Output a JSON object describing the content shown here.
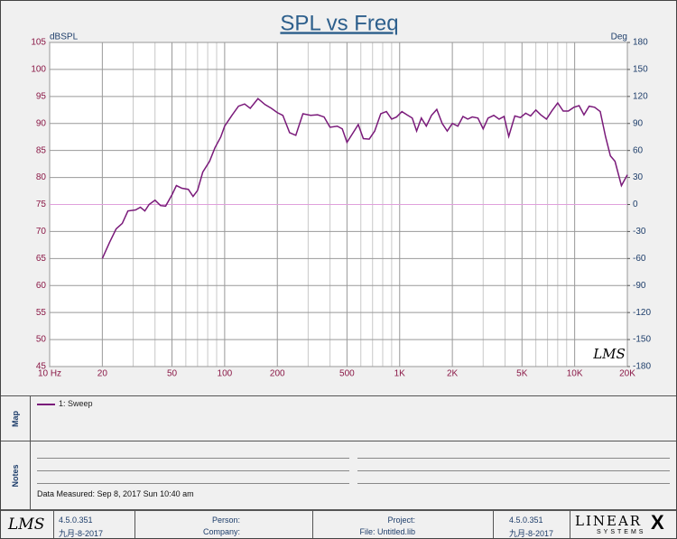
{
  "chart_data": {
    "type": "line",
    "title": "SPL vs Freq",
    "ylabel": "dBSPL",
    "y2label": "Deg",
    "xscale": "log",
    "xlim": [
      10,
      20000
    ],
    "xticks": [
      {
        "value": 10,
        "label": "10 Hz"
      },
      20,
      50,
      100,
      200,
      500,
      {
        "value": 1000,
        "label": "1K"
      },
      {
        "value": 2000,
        "label": "2K"
      },
      {
        "value": 5000,
        "label": "5K"
      },
      {
        "value": 10000,
        "label": "10K"
      },
      {
        "value": 20000,
        "label": "20K"
      }
    ],
    "xminor_ticks": [
      30,
      40,
      60,
      70,
      80,
      90,
      300,
      400,
      600,
      700,
      800,
      900,
      3000,
      4000,
      6000,
      7000,
      8000,
      9000
    ],
    "ylim": [
      45,
      105
    ],
    "yticks": [
      45,
      50,
      55,
      60,
      65,
      70,
      75,
      80,
      85,
      90,
      95,
      100,
      105
    ],
    "y2lim": [
      -180,
      180
    ],
    "y2ticks": [
      -180,
      -150,
      -120,
      -90,
      -60,
      -30,
      0,
      30,
      60,
      90,
      120,
      150,
      180
    ],
    "grid": true,
    "series": [
      {
        "name": "1: Sweep",
        "color": "#7a1a7a",
        "x": [
          20,
          22,
          24,
          26,
          28,
          31,
          33,
          35,
          37,
          40,
          43,
          46,
          50,
          53,
          57,
          62,
          66,
          70,
          75,
          82,
          88,
          95,
          100,
          110,
          120,
          130,
          140,
          155,
          170,
          185,
          200,
          215,
          235,
          255,
          280,
          310,
          340,
          370,
          400,
          440,
          470,
          500,
          540,
          580,
          620,
          670,
          720,
          780,
          840,
          900,
          960,
          1030,
          1100,
          1180,
          1250,
          1330,
          1420,
          1520,
          1630,
          1750,
          1870,
          2000,
          2150,
          2300,
          2450,
          2600,
          2800,
          3000,
          3200,
          3450,
          3700,
          3950,
          4200,
          4550,
          4900,
          5250,
          5600,
          6000,
          6400,
          6900,
          7400,
          8000,
          8600,
          9200,
          9900,
          10600,
          11300,
          12100,
          13000,
          14000,
          15000,
          16000,
          17000,
          18500,
          20000
        ],
        "values": [
          65,
          68,
          70.5,
          71.5,
          73.8,
          74,
          74.5,
          73.8,
          75,
          75.8,
          74.8,
          74.7,
          76.8,
          78.5,
          78,
          77.8,
          76.5,
          77.6,
          81,
          83,
          85.5,
          87.5,
          89.5,
          91.5,
          93.2,
          93.6,
          92.8,
          94.6,
          93.5,
          92.8,
          92,
          91.5,
          88.3,
          87.8,
          91.8,
          91.5,
          91.6,
          91.2,
          89.3,
          89.5,
          89,
          86.5,
          88.2,
          89.8,
          87.2,
          87.1,
          88.6,
          91.8,
          92.2,
          90.8,
          91.2,
          92.2,
          91.6,
          91,
          88.6,
          91,
          89.5,
          91.5,
          92.6,
          90,
          88.6,
          90,
          89.5,
          91.3,
          90.8,
          91.2,
          91,
          89,
          91,
          91.5,
          90.8,
          91.3,
          87.6,
          91.4,
          91.1,
          91.9,
          91.4,
          92.5,
          91.6,
          90.8,
          92.3,
          93.8,
          92.3,
          92.3,
          93,
          93.3,
          91.6,
          93.2,
          93,
          92.2,
          87.6,
          84,
          83,
          78.5,
          80.5
        ]
      },
      {
        "color": "#e0a0dc",
        "axis": "y2",
        "x": [
          10,
          20000
        ],
        "values": [
          0,
          0
        ]
      }
    ]
  },
  "watermark": "LMS",
  "map_panel": {
    "label": "Map"
  },
  "notes_panel": {
    "label": "Notes",
    "measured": "Data Measured: Sep 8, 2017 Sun 10:40 am"
  },
  "footer": {
    "logo": "LMS",
    "version": "4.5.0.351",
    "date": "九月-8-2017",
    "person": "Person:",
    "company": "Company:",
    "project": "Project:",
    "file": "File: Untitled.lib",
    "version_right": "4.5.0.351",
    "date_right": "九月-8-2017",
    "brand_top": "LINEAR",
    "brand_x": "X",
    "brand_bottom": "SYSTEMS"
  }
}
